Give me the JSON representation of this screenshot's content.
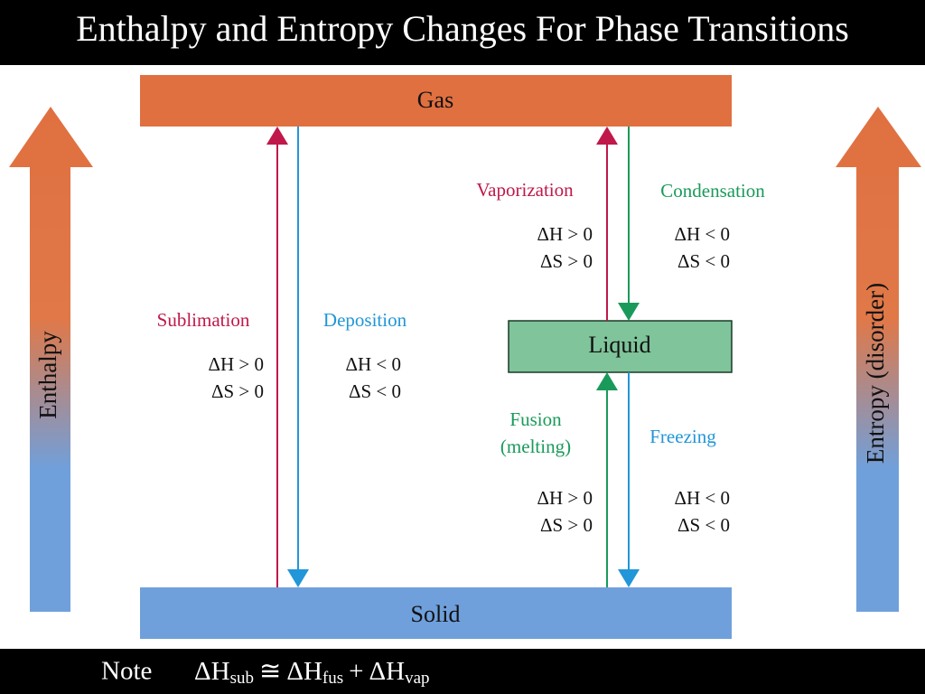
{
  "header": {
    "title": "Enthalpy and Entropy Changes For Phase Transitions"
  },
  "phases": {
    "gas": "Gas",
    "liquid": "Liquid",
    "solid": "Solid"
  },
  "axes": {
    "left": "Enthalpy",
    "right": "Entropy (disorder)"
  },
  "processes": [
    {
      "name": [
        "Sublimation"
      ],
      "delta_h": "ΔH > 0",
      "delta_s": "ΔS > 0"
    },
    {
      "name": [
        "Deposition"
      ],
      "delta_h": "ΔH < 0",
      "delta_s": "ΔS < 0"
    },
    {
      "name": [
        "Vaporization"
      ],
      "delta_h": "ΔH > 0",
      "delta_s": "ΔS > 0"
    },
    {
      "name": [
        "Condensation"
      ],
      "delta_h": "ΔH < 0",
      "delta_s": "ΔS < 0"
    },
    {
      "name": [
        "Fusion",
        "(melting)"
      ],
      "delta_h": "ΔH > 0",
      "delta_s": "ΔS > 0"
    },
    {
      "name": [
        "Freezing"
      ],
      "delta_h": "ΔH < 0",
      "delta_s": "ΔS < 0"
    }
  ],
  "footer": {
    "note": "Note",
    "formula": {
      "terms": [
        {
          "base": "ΔH",
          "sub": "sub"
        },
        {
          "base": "ΔH",
          "sub": "fus"
        },
        {
          "base": "ΔH",
          "sub": "vap"
        }
      ],
      "operators": [
        "≅",
        "+"
      ]
    }
  }
}
